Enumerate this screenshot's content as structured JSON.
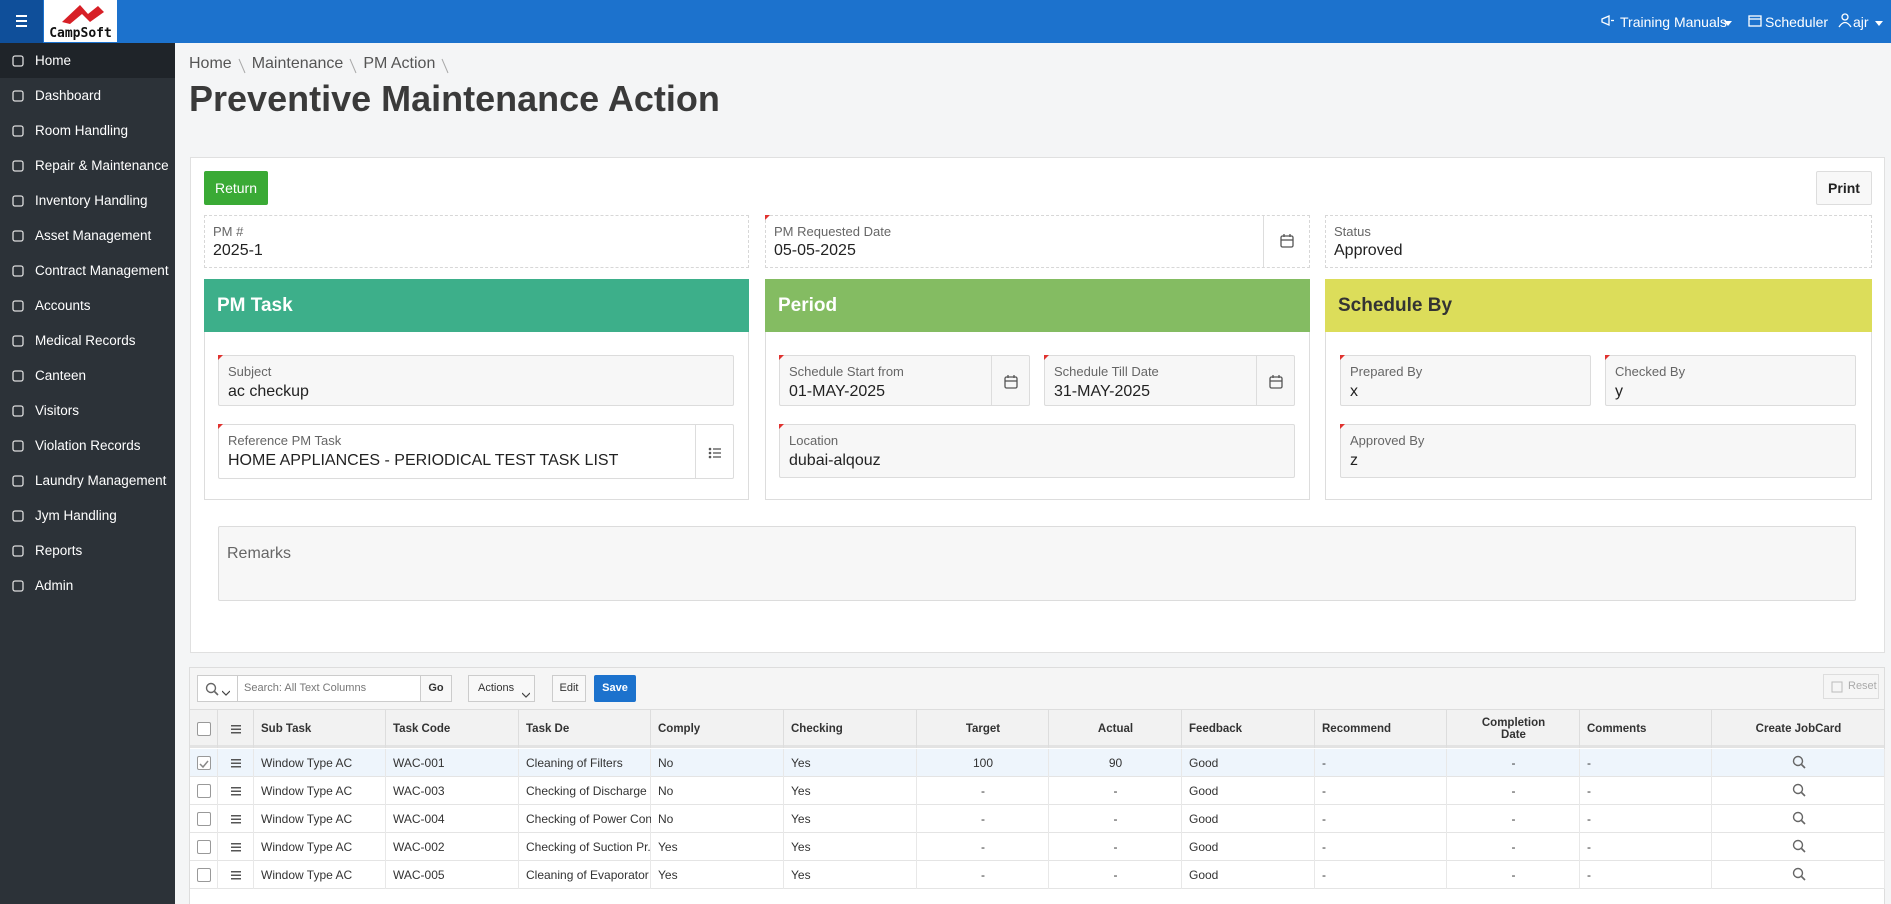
{
  "header": {
    "logo": "CampSoft",
    "links": [
      "Training Manuals",
      "Scheduler",
      "ajr"
    ]
  },
  "sidebar": {
    "items": [
      "Home",
      "Dashboard",
      "Room Handling",
      "Repair & Maintenance",
      "Inventory Handling",
      "Asset Management",
      "Contract Management",
      "Accounts",
      "Medical Records",
      "Canteen",
      "Visitors",
      "Violation Records",
      "Laundry Management",
      "Jym Handling",
      "Reports",
      "Admin"
    ]
  },
  "breadcrumb": [
    "Home",
    "Maintenance",
    "PM Action"
  ],
  "page_title": "Preventive Maintenance Action",
  "buttons": {
    "return": "Return",
    "print": "Print"
  },
  "fields": [
    {
      "label": "PM #",
      "value": "2025-1"
    },
    {
      "label": "PM Requested Date",
      "value": "05-05-2025"
    },
    {
      "label": "Status",
      "value": "Approved"
    }
  ],
  "panels": [
    {
      "title": "PM Task",
      "fields": [
        {
          "label": "Subject",
          "value": "ac checkup"
        },
        {
          "label": "Reference PM Task",
          "value": "HOME APPLIANCES - PERIODICAL TEST TASK LIST"
        }
      ]
    },
    {
      "title": "Period",
      "fields": [
        {
          "label": "Schedule Start from",
          "value": "01-MAY-2025"
        },
        {
          "label": "Schedule Till Date",
          "value": "31-MAY-2025"
        },
        {
          "label": "Location",
          "value": "dubai-alqouz"
        }
      ]
    },
    {
      "title": "Schedule By",
      "fields": [
        {
          "label": "Prepared By",
          "value": "x"
        },
        {
          "label": "Checked By",
          "value": "y"
        },
        {
          "label": "Approved By",
          "value": "z"
        }
      ]
    }
  ],
  "remarks": {
    "label": "Remarks"
  },
  "grid": {
    "toolbar": {
      "search_placeholder": "Search: All Text Columns",
      "go": "Go",
      "actions": "Actions",
      "edit": "Edit",
      "save": "Save",
      "reset": "Reset"
    },
    "columns": [
      "Sub Task",
      "Task Code",
      "Task De",
      "Comply",
      "Checking",
      "Target",
      "Actual",
      "Feedback",
      "Recommend",
      "Completion Date",
      "Comments",
      "Create JobCard"
    ],
    "rows": [
      [
        "Window Type AC",
        "WAC-001",
        "Cleaning of Filters",
        "No",
        "Yes",
        100,
        90,
        "Good",
        "-",
        "-",
        "-"
      ],
      [
        "Window Type AC",
        "WAC-003",
        "Checking of Discharge ...",
        "No",
        "Yes",
        "-",
        "-",
        "Good",
        "-",
        "-",
        "-"
      ],
      [
        "Window Type AC",
        "WAC-004",
        "Checking of Power Con...",
        "No",
        "Yes",
        "-",
        "-",
        "Good",
        "-",
        "-",
        "-"
      ],
      [
        "Window Type AC",
        "WAC-002",
        "Checking of Suction Pr...",
        "Yes",
        "Yes",
        "-",
        "-",
        "Good",
        "-",
        "-",
        "-"
      ],
      [
        "Window Type AC",
        "WAC-005",
        "Cleaning of Evaporator",
        "Yes",
        "Yes",
        "-",
        "-",
        "Good",
        "-",
        "-",
        "-"
      ]
    ]
  }
}
